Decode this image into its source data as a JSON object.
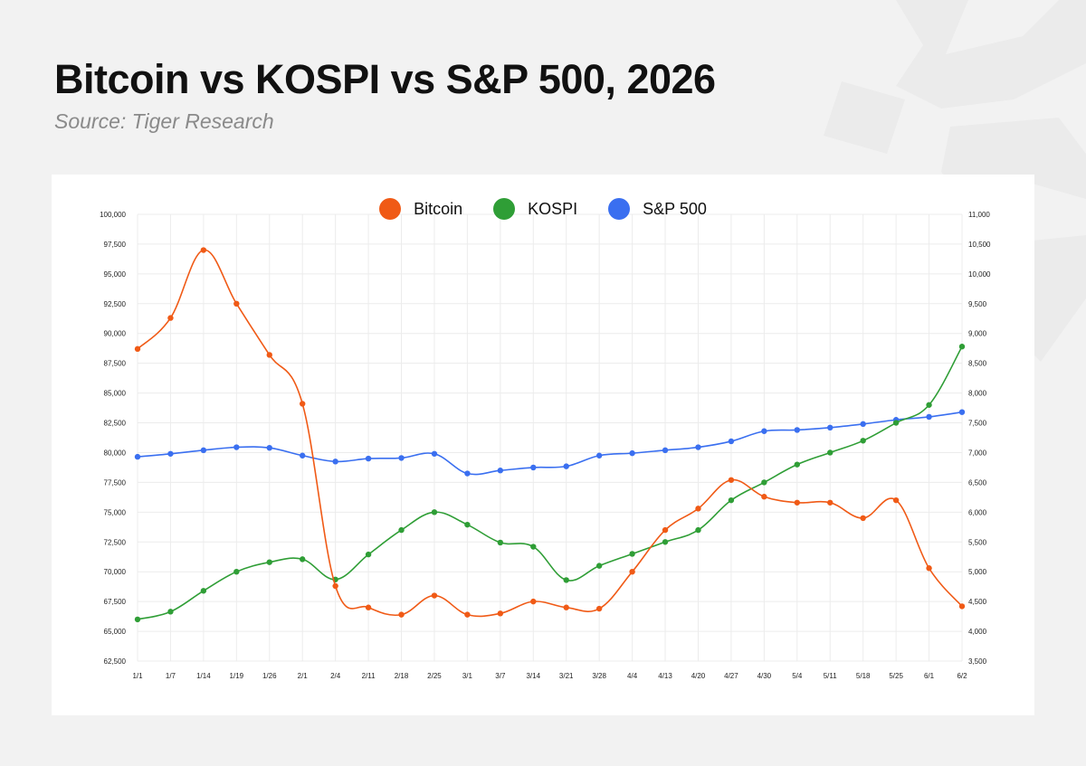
{
  "title": "Bitcoin vs KOSPI vs S&P 500, 2026",
  "subtitle": "Source: Tiger Research",
  "chart_data": {
    "type": "line",
    "title": "Bitcoin vs KOSPI vs S&P 500, 2026",
    "subtitle": "Source: Tiger Research",
    "categories": [
      "1/1",
      "1/7",
      "1/14",
      "1/19",
      "1/26",
      "2/1",
      "2/4",
      "2/11",
      "2/18",
      "2/25",
      "3/1",
      "3/7",
      "3/14",
      "3/21",
      "3/28",
      "4/4",
      "4/13",
      "4/20",
      "4/27",
      "4/30",
      "5/4",
      "5/11",
      "5/18",
      "5/25",
      "6/1",
      "6/2"
    ],
    "y_left": {
      "range": [
        62500,
        100000
      ],
      "ticks": [
        100000,
        97500,
        95000,
        92500,
        90000,
        87500,
        85000,
        82500,
        80000,
        77500,
        75000,
        72500,
        70000,
        67500,
        65000,
        62500
      ],
      "tick_labels": [
        "100,000",
        "97,500",
        "95,000",
        "92,500",
        "90,000",
        "87,500",
        "85,000",
        "82,500",
        "80,000",
        "77,500",
        "75,000",
        "72,500",
        "70,000",
        "67,500",
        "65,000",
        "62,500"
      ]
    },
    "y_right": {
      "range": [
        3500,
        11000
      ],
      "ticks": [
        11000,
        10500,
        10000,
        9500,
        9000,
        8500,
        8000,
        7500,
        7000,
        6500,
        6000,
        5500,
        5000,
        4500,
        4000,
        3500
      ],
      "tick_labels": [
        "11,000",
        "10,500",
        "10,000",
        "9,500",
        "9,000",
        "8,500",
        "8,000",
        "7,500",
        "7,000",
        "6,500",
        "6,000",
        "5,500",
        "5,000",
        "4,500",
        "4,000",
        "3,500"
      ]
    },
    "grid": true,
    "legend_position": "top-center",
    "series": [
      {
        "name": "Bitcoin",
        "axis": "left",
        "color": "#f05a16",
        "values": [
          88700,
          91300,
          97000,
          92500,
          88200,
          84100,
          68800,
          67000,
          66400,
          68000,
          66400,
          66500,
          67500,
          67000,
          66900,
          70000,
          73500,
          75300,
          77700,
          76300,
          75800,
          75800,
          74500,
          76000,
          70300,
          67100
        ]
      },
      {
        "name": "KOSPI",
        "axis": "right",
        "color": "#2f9e36",
        "values": [
          4200,
          4330,
          4680,
          5000,
          5160,
          5210,
          4870,
          5290,
          5700,
          6000,
          5790,
          5490,
          5420,
          4860,
          5100,
          5300,
          5500,
          5700,
          6200,
          6500,
          6800,
          7000,
          7200,
          7500,
          7800,
          8780
        ]
      },
      {
        "name": "S&P 500",
        "axis": "right",
        "color": "#3a6ff0",
        "values": [
          6930,
          6980,
          7040,
          7090,
          7080,
          6950,
          6850,
          6900,
          6910,
          6980,
          6650,
          6700,
          6750,
          6770,
          6950,
          6990,
          7040,
          7090,
          7190,
          7360,
          7380,
          7420,
          7480,
          7550,
          7600,
          7680
        ]
      }
    ]
  }
}
